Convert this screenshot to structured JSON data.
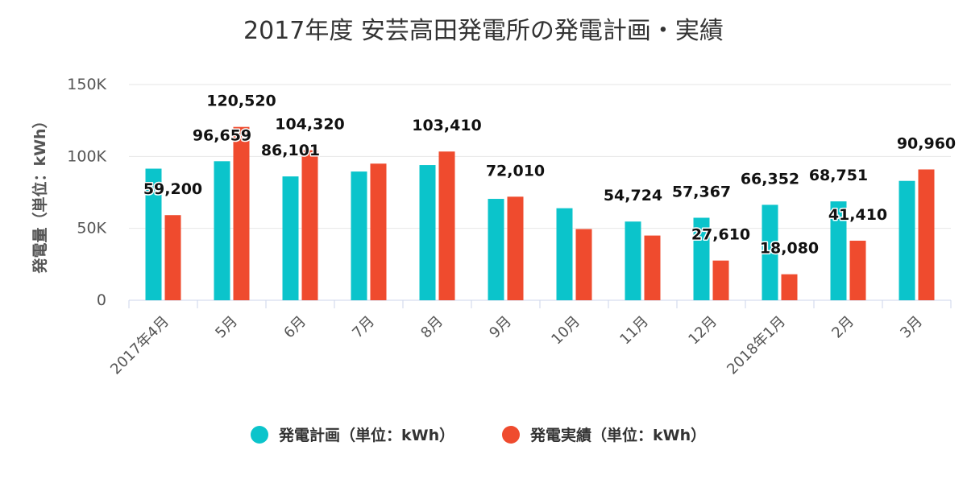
{
  "chart_data": {
    "type": "bar",
    "title": "2017年度 安芸高田発電所の発電計画・実績",
    "ylabel": "発電量（単位：kWh）",
    "xlabel": "",
    "ylim": [
      0,
      150000
    ],
    "yticks": [
      {
        "value": 0,
        "label": "0"
      },
      {
        "value": 50000,
        "label": "50K"
      },
      {
        "value": 100000,
        "label": "100K"
      },
      {
        "value": 150000,
        "label": "150K"
      }
    ],
    "grid": true,
    "legend_position": "bottom",
    "categories": [
      "2017年4月",
      "5月",
      "6月",
      "7月",
      "8月",
      "9月",
      "10月",
      "11月",
      "12月",
      "2018年1月",
      "2月",
      "3月"
    ],
    "series": [
      {
        "name": "発電計画（単位：kWh）",
        "color": "#0BC4CB",
        "values": [
          91500,
          96659,
          86101,
          89500,
          94000,
          70500,
          64000,
          54724,
          57367,
          66352,
          68751,
          83000
        ],
        "labels": [
          "",
          "96,659",
          "86,101",
          "",
          "",
          "",
          "",
          "54,724",
          "57,367",
          "66,352",
          "68,751",
          ""
        ]
      },
      {
        "name": "発電実績（単位：kWh）",
        "color": "#EF4B2E",
        "values": [
          59200,
          120520,
          104320,
          95000,
          103410,
          72010,
          49500,
          45000,
          27610,
          18080,
          41410,
          90960
        ],
        "labels": [
          "59,200",
          "120,520",
          "104,320",
          "",
          "103,410",
          "72,010",
          "",
          "",
          "27,610",
          "18,080",
          "41,410",
          "90,960"
        ]
      }
    ]
  }
}
